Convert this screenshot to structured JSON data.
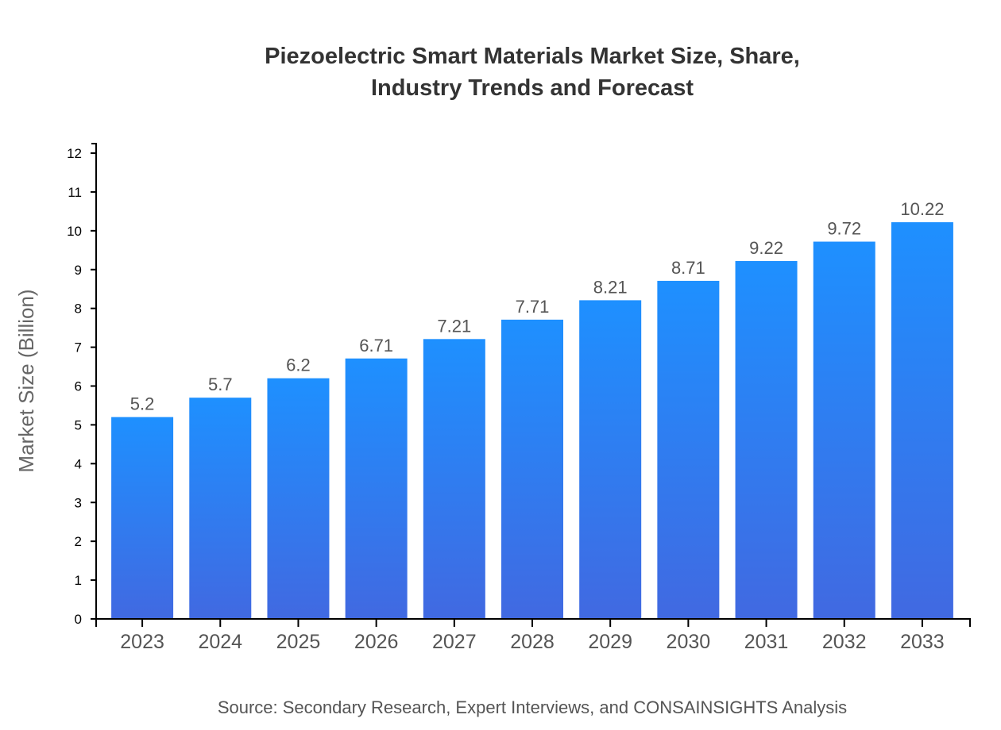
{
  "chart_data": {
    "type": "bar",
    "title_lines": [
      "Piezoelectric Smart Materials Market Size, Share,",
      "Industry Trends and Forecast"
    ],
    "categories": [
      "2023",
      "2024",
      "2025",
      "2026",
      "2027",
      "2028",
      "2029",
      "2030",
      "2031",
      "2032",
      "2033"
    ],
    "values": [
      5.2,
      5.7,
      6.2,
      6.71,
      7.21,
      7.71,
      8.21,
      8.71,
      9.22,
      9.72,
      10.22
    ],
    "xlabel": "",
    "ylabel": "Market Size (Billion)",
    "ylim": [
      0,
      12
    ],
    "yticks": [
      0,
      1,
      2,
      3,
      4,
      5,
      6,
      7,
      8,
      9,
      10,
      11,
      12
    ],
    "grid": false,
    "data_labels": true,
    "colors": {
      "bar_top": "#1e90ff",
      "bar_bottom": "#4169e1"
    },
    "source": "Source: Secondary Research, Expert Interviews, and CONSAINSIGHTS Analysis"
  }
}
